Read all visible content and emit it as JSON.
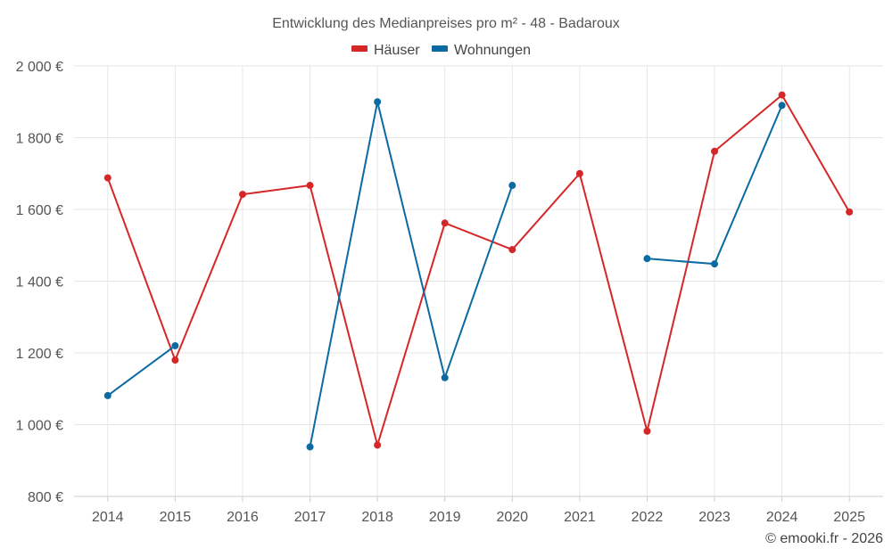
{
  "chart_data": {
    "type": "line",
    "title": "Entwicklung des Medianpreises pro m² - 48 - Badaroux",
    "xlabel": "",
    "ylabel": "",
    "categories": [
      "2014",
      "2015",
      "2016",
      "2017",
      "2018",
      "2019",
      "2020",
      "2021",
      "2022",
      "2023",
      "2024",
      "2025"
    ],
    "ylim": [
      800,
      2000
    ],
    "yticks": [
      800,
      1000,
      1200,
      1400,
      1600,
      1800,
      2000
    ],
    "ytick_labels": [
      "800 €",
      "1 000 €",
      "1 200 €",
      "1 400 €",
      "1 600 €",
      "1 800 €",
      "2 000 €"
    ],
    "grid": true,
    "legend_position": "top-center",
    "series": [
      {
        "name": "Häuser",
        "color": "#d62728",
        "values": [
          1688,
          1180,
          1642,
          1667,
          943,
          1562,
          1488,
          1700,
          982,
          1762,
          1919,
          1593
        ]
      },
      {
        "name": "Wohnungen",
        "color": "#0a6aa1",
        "values": [
          1081,
          1220,
          null,
          938,
          1900,
          1131,
          1667,
          null,
          1463,
          1448,
          1890,
          null
        ]
      }
    ]
  },
  "credit": "© emooki.fr - 2026"
}
